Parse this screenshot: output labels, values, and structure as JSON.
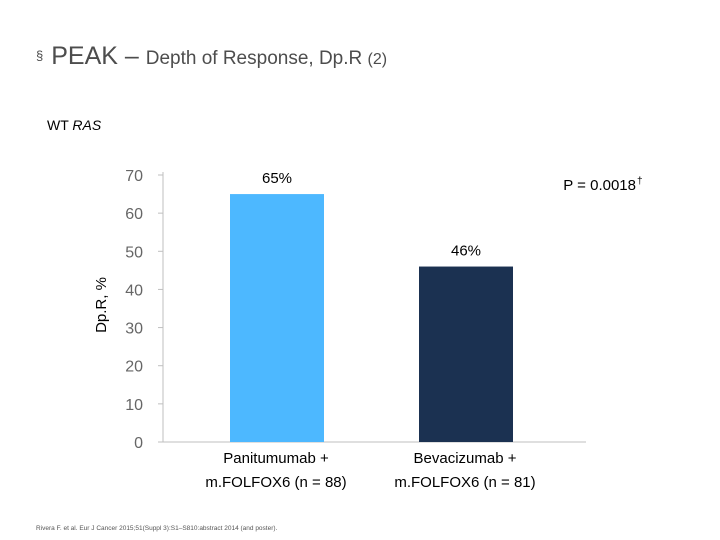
{
  "slide": {
    "bullet_glyph": "§",
    "title_main": "PEAK – ",
    "title_sub": "Depth of Response, Dp.R ",
    "title_num": "(2)",
    "subset_prefix": "WT ",
    "subset_gene": "RAS",
    "footer": "Rivera F. et al. Eur J Cancer 2015;51(Suppl 3):S1–S810:abstract 2014 (and poster)."
  },
  "chart_data": {
    "type": "bar",
    "categories": [
      "Panitumumab + m.FOLFOX6 (n = 88)",
      "Bevacizumab + m.FOLFOX6 (n = 81)"
    ],
    "category_lines": [
      [
        "Panitumumab +",
        "m.FOLFOX6 (n = 88)"
      ],
      [
        "Bevacizumab +",
        "m.FOLFOX6 (n = 81)"
      ]
    ],
    "values": [
      65,
      46
    ],
    "data_labels": [
      "65%",
      "46%"
    ],
    "colors": [
      "#4db8ff",
      "#1b3151"
    ],
    "ylabel": "Dp.R, %",
    "ylim": [
      0,
      70
    ],
    "yticks": [
      0,
      10,
      20,
      30,
      40,
      50,
      60,
      70
    ],
    "grid": false,
    "annotation": "P = 0.0018",
    "annotation_dagger": "†"
  }
}
